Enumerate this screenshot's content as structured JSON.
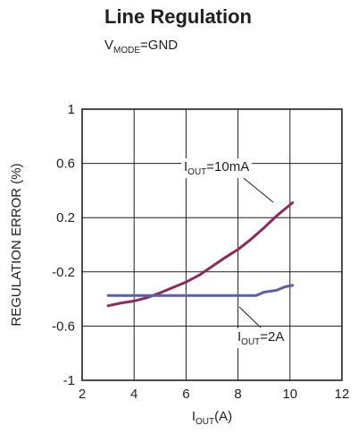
{
  "chart_data": {
    "type": "line",
    "title": "Line Regulation",
    "subtitle": {
      "main": "V",
      "sub": "MODE",
      "rest": "=GND"
    },
    "xlabel": {
      "main": "I",
      "sub": "OUT",
      "rest": "(A)"
    },
    "ylabel": "REGULATION ERROR (%)",
    "xlim": [
      2,
      12
    ],
    "ylim": [
      -1,
      1
    ],
    "xticks": [
      2,
      4,
      6,
      8,
      10,
      12
    ],
    "yticks": [
      1,
      0.6,
      0.2,
      -0.2,
      -0.6,
      -1
    ],
    "ytick_labels": [
      "1",
      "0.6",
      "0.2",
      "-0.2",
      "-0.6",
      "-1"
    ],
    "grid": true,
    "series": [
      {
        "name": {
          "main": "I",
          "sub": "OUT",
          "rest": "=10mA"
        },
        "color": "#8b2d5c",
        "x": [
          3.0,
          3.5,
          4.0,
          4.5,
          5.0,
          5.5,
          6.0,
          6.5,
          7.0,
          7.5,
          8.0,
          8.5,
          9.0,
          9.5,
          10.1
        ],
        "y": [
          -0.45,
          -0.43,
          -0.415,
          -0.39,
          -0.355,
          -0.315,
          -0.275,
          -0.225,
          -0.16,
          -0.095,
          -0.035,
          0.04,
          0.125,
          0.215,
          0.31
        ]
      },
      {
        "name": {
          "main": "I",
          "sub": "OUT",
          "rest": "=2A"
        },
        "color": "#5b5fa3",
        "x": [
          3.0,
          4.0,
          5.0,
          6.0,
          7.0,
          8.0,
          8.7,
          9.0,
          9.5,
          9.8,
          10.1
        ],
        "y": [
          -0.375,
          -0.375,
          -0.375,
          -0.375,
          -0.375,
          -0.375,
          -0.375,
          -0.35,
          -0.335,
          -0.31,
          -0.3
        ]
      }
    ]
  }
}
